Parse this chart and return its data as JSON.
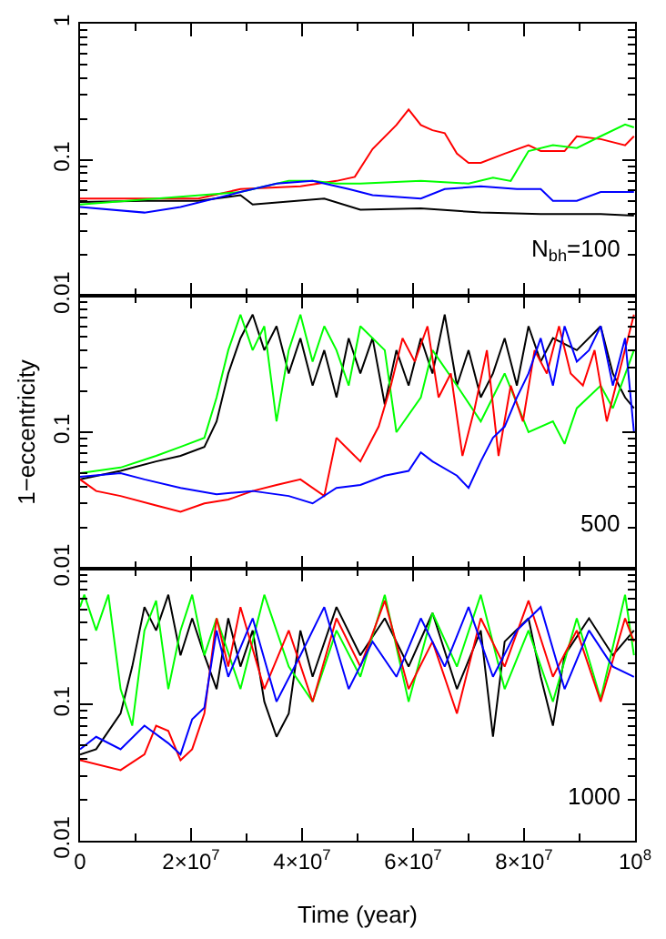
{
  "chart_data": [
    {
      "type": "line",
      "log": "y",
      "tick_labels": "y",
      "xlim": [
        0,
        100000000.0
      ],
      "ylim": [
        0.01,
        1
      ],
      "xticks": [
        {
          "value": 0,
          "label": "0"
        },
        {
          "value": 20000000.0,
          "label": "2×10$^{7}$"
        },
        {
          "value": 40000000.0,
          "label": "4×10$^{7}$"
        },
        {
          "value": 60000000.0,
          "label": "6×10$^{7}$"
        },
        {
          "value": 80000000.0,
          "label": "8×10$^{7}$"
        },
        {
          "value": 100000000.0,
          "label": "10$^{8}$"
        }
      ],
      "yticks": [
        0.01,
        0.1,
        1
      ],
      "annotations": [
        "N$_{bh}$=100"
      ],
      "series": [
        {
          "color": "#000000",
          "x": [
            0,
            11600000.0,
            21300000.0,
            28900000.0,
            31100000.0,
            44000000.0,
            50500000.0,
            61400000.0,
            72200000.0,
            83000000.0,
            93800000.0,
            99800000.0
          ],
          "values": [
            0.049,
            0.05,
            0.05,
            0.055,
            0.047,
            0.052,
            0.043,
            0.044,
            0.041,
            0.04,
            0.04,
            0.039
          ]
        },
        {
          "color": "#ff0000",
          "x": [
            0,
            21300000.0,
            28900000.0,
            39700000.0,
            46200000.0,
            49500000.0,
            52700000.0,
            57000000.0,
            59200000.0,
            61400000.0,
            63500000.0,
            65700000.0,
            67900000.0,
            70000000.0,
            72200000.0,
            76500000.0,
            80800000.0,
            83000000.0,
            87300000.0,
            89500000.0,
            93800000.0,
            98200000.0,
            99800000.0
          ],
          "values": [
            0.052,
            0.052,
            0.061,
            0.064,
            0.07,
            0.075,
            0.12,
            0.18,
            0.234,
            0.18,
            0.165,
            0.157,
            0.111,
            0.095,
            0.095,
            0.111,
            0.128,
            0.116,
            0.116,
            0.149,
            0.142,
            0.128,
            0.149
          ]
        },
        {
          "color": "#00ff00",
          "x": [
            0,
            28900000.0,
            37600000.0,
            41900000.0,
            46200000.0,
            50500000.0,
            61400000.0,
            70000000.0,
            74400000.0,
            77600000.0,
            80800000.0,
            85200000.0,
            89500000.0,
            93800000.0,
            98200000.0,
            99800000.0
          ],
          "values": [
            0.047,
            0.058,
            0.07,
            0.07,
            0.067,
            0.067,
            0.07,
            0.067,
            0.074,
            0.07,
            0.116,
            0.128,
            0.122,
            0.149,
            0.182,
            0.173
          ]
        },
        {
          "color": "#0000ff",
          "x": [
            0,
            11600000.0,
            18100000.0,
            28900000.0,
            35400000.0,
            41900000.0,
            48400000.0,
            52700000.0,
            61400000.0,
            65700000.0,
            72200000.0,
            78700000.0,
            83000000.0,
            85200000.0,
            89500000.0,
            93800000.0,
            99800000.0
          ],
          "values": [
            0.045,
            0.041,
            0.045,
            0.058,
            0.067,
            0.07,
            0.061,
            0.055,
            0.052,
            0.061,
            0.064,
            0.061,
            0.061,
            0.05,
            0.05,
            0.058,
            0.058
          ]
        }
      ]
    },
    {
      "type": "line",
      "log": "y",
      "tick_labels": "y",
      "xlim": [
        0,
        100000000.0
      ],
      "ylim": [
        0.01,
        1
      ],
      "xticks": [
        {
          "value": 0,
          "label": "0"
        },
        {
          "value": 20000000.0,
          "label": "2×10$^{7}$"
        },
        {
          "value": 40000000.0,
          "label": "4×10$^{7}$"
        },
        {
          "value": 60000000.0,
          "label": "6×10$^{7}$"
        },
        {
          "value": 80000000.0,
          "label": "8×10$^{7}$"
        },
        {
          "value": 100000000.0,
          "label": "10$^{8}$"
        }
      ],
      "yticks": [
        0.01,
        0.1,
        {
          "value": 1,
          "label": null
        }
      ],
      "ylabel": "1−eccentricity",
      "annotations": [
        "500"
      ],
      "series": [
        {
          "color": "#000000",
          "x": [
            0,
            7300000.0,
            13700000.0,
            18100000.0,
            22400000.0,
            24600000.0,
            26700000.0,
            28900000.0,
            31100000.0,
            33200000.0,
            35400000.0,
            37600000.0,
            39700000.0,
            41900000.0,
            44000000.0,
            46200000.0,
            48400000.0,
            50500000.0,
            52700000.0,
            54900000.0,
            57000000.0,
            59200000.0,
            61400000.0,
            63500000.0,
            65700000.0,
            67900000.0,
            70000000.0,
            72200000.0,
            74400000.0,
            76500000.0,
            78700000.0,
            80800000.0,
            83000000.0,
            85200000.0,
            89500000.0,
            93800000.0,
            96000000.0,
            98200000.0,
            99800000.0
          ],
          "values": [
            0.045,
            0.052,
            0.061,
            0.067,
            0.078,
            0.12,
            0.27,
            0.49,
            0.73,
            0.4,
            0.6,
            0.27,
            0.49,
            0.22,
            0.4,
            0.18,
            0.49,
            0.27,
            0.49,
            0.16,
            0.4,
            0.22,
            0.49,
            0.27,
            0.73,
            0.22,
            0.4,
            0.18,
            0.27,
            0.49,
            0.22,
            0.6,
            0.33,
            0.49,
            0.4,
            0.6,
            0.27,
            0.18,
            0.15
          ]
        },
        {
          "color": "#00ff00",
          "x": [
            0,
            7300000.0,
            13700000.0,
            18100000.0,
            22400000.0,
            24600000.0,
            26700000.0,
            28900000.0,
            31100000.0,
            33200000.0,
            35400000.0,
            37600000.0,
            39700000.0,
            41900000.0,
            44000000.0,
            46200000.0,
            48400000.0,
            50500000.0,
            54900000.0,
            57000000.0,
            61400000.0,
            63500000.0,
            67900000.0,
            72200000.0,
            76500000.0,
            80800000.0,
            85200000.0,
            87300000.0,
            89500000.0,
            93800000.0,
            96000000.0,
            99800000.0
          ],
          "values": [
            0.05,
            0.055,
            0.067,
            0.078,
            0.091,
            0.18,
            0.4,
            0.73,
            0.4,
            0.6,
            0.12,
            0.4,
            0.73,
            0.33,
            0.6,
            0.4,
            0.22,
            0.6,
            0.4,
            0.1,
            0.18,
            0.4,
            0.22,
            0.12,
            0.27,
            0.1,
            0.12,
            0.082,
            0.15,
            0.22,
            0.15,
            0.4
          ]
        },
        {
          "color": "#ff0000",
          "x": [
            0,
            2900000.0,
            7300000.0,
            13700000.0,
            18100000.0,
            22400000.0,
            26700000.0,
            31100000.0,
            35400000.0,
            39700000.0,
            44000000.0,
            46200000.0,
            48400000.0,
            50500000.0,
            53800000.0,
            56000000.0,
            58100000.0,
            60300000.0,
            62600000.0,
            64600000.0,
            66800000.0,
            68900000.0,
            71100000.0,
            73300000.0,
            75400000.0,
            77600000.0,
            79800000.0,
            81900000.0,
            84100000.0,
            86300000.0,
            88400000.0,
            90600000.0,
            92700000.0,
            94900000.0,
            97100000.0,
            99800000.0
          ],
          "values": [
            0.045,
            0.037,
            0.034,
            0.029,
            0.026,
            0.03,
            0.032,
            0.037,
            0.041,
            0.045,
            0.034,
            0.091,
            0.074,
            0.061,
            0.11,
            0.22,
            0.49,
            0.33,
            0.6,
            0.18,
            0.27,
            0.067,
            0.15,
            0.4,
            0.067,
            0.22,
            0.12,
            0.4,
            0.27,
            0.6,
            0.27,
            0.22,
            0.4,
            0.12,
            0.27,
            0.73
          ]
        },
        {
          "color": "#0000ff",
          "x": [
            0,
            7300000.0,
            11600000.0,
            18100000.0,
            24600000.0,
            31100000.0,
            37600000.0,
            41900000.0,
            46200000.0,
            50500000.0,
            54900000.0,
            59200000.0,
            61400000.0,
            63500000.0,
            67900000.0,
            70000000.0,
            72200000.0,
            74400000.0,
            76500000.0,
            78700000.0,
            80800000.0,
            83000000.0,
            85200000.0,
            87300000.0,
            89500000.0,
            91700000.0,
            93800000.0,
            96000000.0,
            98200000.0,
            99800000.0
          ],
          "values": [
            0.047,
            0.05,
            0.045,
            0.039,
            0.035,
            0.037,
            0.034,
            0.03,
            0.039,
            0.041,
            0.048,
            0.052,
            0.071,
            0.061,
            0.048,
            0.039,
            0.061,
            0.091,
            0.11,
            0.18,
            0.27,
            0.49,
            0.22,
            0.6,
            0.33,
            0.4,
            0.6,
            0.22,
            0.49,
            0.1
          ]
        }
      ]
    },
    {
      "type": "line",
      "log": "y",
      "xlim": [
        0,
        100000000.0
      ],
      "ylim": [
        0.01,
        1
      ],
      "xticks": [
        {
          "value": 0,
          "label": "0"
        },
        {
          "value": 20000000.0,
          "label": "2×10$^{7}$"
        },
        {
          "value": 40000000.0,
          "label": "4×10$^{7}$"
        },
        {
          "value": 60000000.0,
          "label": "6×10$^{7}$"
        },
        {
          "value": 80000000.0,
          "label": "8×10$^{7}$"
        },
        {
          "value": 100000000.0,
          "label": "10$^{8}$"
        }
      ],
      "yticks": [
        0.01,
        0.1,
        {
          "value": 1,
          "label": null
        }
      ],
      "xlabel": "Time (year)",
      "annotations": [
        "1000"
      ],
      "series": [
        {
          "color": "#000000",
          "x": [
            0,
            2900000.0,
            7300000.0,
            9400000.0,
            11600000.0,
            13700000.0,
            15900000.0,
            18100000.0,
            20200000.0,
            22400000.0,
            24600000.0,
            26700000.0,
            28900000.0,
            31100000.0,
            33200000.0,
            35400000.0,
            37600000.0,
            39700000.0,
            41900000.0,
            46200000.0,
            50500000.0,
            54900000.0,
            59200000.0,
            63500000.0,
            67900000.0,
            72200000.0,
            74400000.0,
            76500000.0,
            80800000.0,
            83000000.0,
            85200000.0,
            87300000.0,
            91700000.0,
            96000000.0,
            99800000.0
          ],
          "values": [
            0.043,
            0.047,
            0.086,
            0.19,
            0.52,
            0.35,
            0.64,
            0.23,
            0.43,
            0.23,
            0.13,
            0.43,
            0.19,
            0.35,
            0.105,
            0.058,
            0.086,
            0.35,
            0.16,
            0.52,
            0.23,
            0.43,
            0.19,
            0.47,
            0.13,
            0.35,
            0.058,
            0.29,
            0.43,
            0.16,
            0.07,
            0.23,
            0.43,
            0.23,
            0.35
          ]
        },
        {
          "color": "#00ff00",
          "x": [
            0,
            760000.0,
            2900000.0,
            5100000.0,
            7300000.0,
            9400000.0,
            11600000.0,
            13700000.0,
            15900000.0,
            18100000.0,
            20200000.0,
            22400000.0,
            24600000.0,
            28900000.0,
            33200000.0,
            37600000.0,
            41900000.0,
            46200000.0,
            50500000.0,
            54900000.0,
            59200000.0,
            63500000.0,
            67900000.0,
            72200000.0,
            76500000.0,
            80800000.0,
            85200000.0,
            89500000.0,
            93800000.0,
            98200000.0,
            99800000.0
          ],
          "values": [
            0.52,
            0.64,
            0.35,
            0.64,
            0.13,
            0.07,
            0.35,
            0.58,
            0.13,
            0.35,
            0.64,
            0.23,
            0.43,
            0.13,
            0.64,
            0.19,
            0.105,
            0.35,
            0.16,
            0.64,
            0.105,
            0.47,
            0.19,
            0.64,
            0.13,
            0.35,
            0.105,
            0.43,
            0.11,
            0.64,
            0.23
          ]
        },
        {
          "color": "#ff0000",
          "x": [
            0,
            7300000.0,
            11600000.0,
            13700000.0,
            15900000.0,
            18100000.0,
            20200000.0,
            22400000.0,
            24600000.0,
            26700000.0,
            28900000.0,
            33200000.0,
            37600000.0,
            41900000.0,
            46200000.0,
            50500000.0,
            54900000.0,
            59200000.0,
            63500000.0,
            67900000.0,
            72200000.0,
            76500000.0,
            80800000.0,
            85200000.0,
            89500000.0,
            93800000.0,
            98200000.0,
            99800000.0
          ],
          "values": [
            0.039,
            0.033,
            0.043,
            0.07,
            0.064,
            0.039,
            0.047,
            0.086,
            0.43,
            0.19,
            0.52,
            0.13,
            0.35,
            0.105,
            0.43,
            0.19,
            0.58,
            0.13,
            0.29,
            0.086,
            0.43,
            0.19,
            0.58,
            0.16,
            0.35,
            0.105,
            0.43,
            0.29
          ]
        },
        {
          "color": "#0000ff",
          "x": [
            0,
            2900000.0,
            7300000.0,
            11600000.0,
            15900000.0,
            18100000.0,
            20200000.0,
            22400000.0,
            24600000.0,
            26700000.0,
            31100000.0,
            35400000.0,
            39700000.0,
            44000000.0,
            48400000.0,
            52700000.0,
            57000000.0,
            61400000.0,
            65700000.0,
            70000000.0,
            74400000.0,
            78700000.0,
            83000000.0,
            87300000.0,
            91700000.0,
            96000000.0,
            99800000.0
          ],
          "values": [
            0.047,
            0.058,
            0.047,
            0.07,
            0.052,
            0.043,
            0.078,
            0.095,
            0.35,
            0.16,
            0.43,
            0.105,
            0.23,
            0.52,
            0.13,
            0.29,
            0.16,
            0.43,
            0.19,
            0.52,
            0.16,
            0.35,
            0.52,
            0.13,
            0.35,
            0.19,
            0.16
          ]
        }
      ]
    }
  ]
}
